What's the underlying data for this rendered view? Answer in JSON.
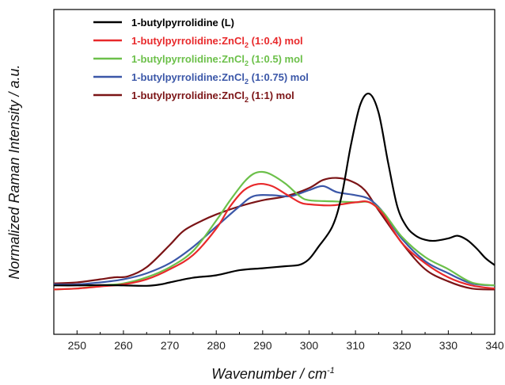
{
  "chart_data": {
    "type": "line",
    "xlabel": "Wavenumber / cm",
    "xlabel_sup": "-1",
    "ylabel": "Normalized Raman Intensity / a.u.",
    "xlim": [
      245,
      340
    ],
    "ylim": [
      0,
      1
    ],
    "x_ticks": [
      250,
      260,
      270,
      280,
      290,
      300,
      310,
      320,
      330,
      340
    ],
    "y_ticks_shown": false,
    "legend_position": "top-left",
    "series": [
      {
        "legend_parts": [
          "1-butylpyrrolidine (L)"
        ],
        "color": "#000000",
        "x": [
          245,
          250,
          255,
          260,
          265,
          268,
          270,
          275,
          280,
          285,
          290,
          295,
          298,
          300,
          302,
          305,
          307,
          309,
          311,
          313,
          315,
          317,
          319,
          321,
          323,
          325,
          327,
          330,
          332,
          334,
          336,
          338,
          340
        ],
        "y": [
          0.03,
          0.03,
          0.032,
          0.03,
          0.028,
          0.035,
          0.045,
          0.068,
          0.08,
          0.105,
          0.115,
          0.125,
          0.132,
          0.16,
          0.22,
          0.32,
          0.47,
          0.72,
          0.92,
          0.975,
          0.88,
          0.64,
          0.42,
          0.32,
          0.275,
          0.255,
          0.25,
          0.262,
          0.275,
          0.255,
          0.215,
          0.165,
          0.13
        ]
      },
      {
        "legend_parts": [
          "1-butylpyrrolidine:ZnCl",
          "2",
          " (1:0.4) mol"
        ],
        "color": "#e8292b",
        "x": [
          245,
          250,
          255,
          260,
          265,
          270,
          275,
          280,
          283,
          286,
          289,
          292,
          295,
          298,
          300,
          305,
          310,
          313,
          316,
          320,
          325,
          330,
          335,
          340
        ],
        "y": [
          0.01,
          0.015,
          0.025,
          0.035,
          0.06,
          0.11,
          0.18,
          0.31,
          0.42,
          0.5,
          0.53,
          0.52,
          0.48,
          0.44,
          0.43,
          0.425,
          0.44,
          0.44,
          0.38,
          0.24,
          0.14,
          0.07,
          0.03,
          0.015
        ]
      },
      {
        "legend_parts": [
          "1-butylpyrrolidine:ZnCl",
          "2",
          " (1:0.5) mol"
        ],
        "color": "#6cc04a",
        "x": [
          245,
          250,
          255,
          260,
          265,
          270,
          275,
          280,
          283,
          286,
          288,
          290,
          292,
          295,
          298,
          300,
          305,
          310,
          313,
          316,
          320,
          325,
          330,
          335,
          340
        ],
        "y": [
          0.01,
          0.015,
          0.03,
          0.04,
          0.07,
          0.12,
          0.2,
          0.35,
          0.45,
          0.54,
          0.58,
          0.59,
          0.575,
          0.53,
          0.47,
          0.45,
          0.445,
          0.44,
          0.44,
          0.39,
          0.27,
          0.17,
          0.11,
          0.045,
          0.03
        ]
      },
      {
        "legend_parts": [
          "1-butylpyrrolidine:ZnCl",
          "2",
          " (1:0.75) mol"
        ],
        "color": "#3b57a8",
        "x": [
          245,
          250,
          255,
          260,
          265,
          270,
          275,
          280,
          285,
          288,
          292,
          296,
          300,
          303,
          306,
          310,
          313,
          316,
          320,
          325,
          330,
          335,
          340
        ],
        "y": [
          0.035,
          0.035,
          0.045,
          0.06,
          0.09,
          0.14,
          0.22,
          0.32,
          0.42,
          0.47,
          0.475,
          0.47,
          0.5,
          0.52,
          0.49,
          0.475,
          0.455,
          0.39,
          0.26,
          0.15,
          0.09,
          0.04,
          0.03
        ]
      },
      {
        "legend_parts": [
          "1-butylpyrrolidine:ZnCl",
          "2",
          " (1:1) mol"
        ],
        "color": "#7b1416",
        "x": [
          245,
          250,
          255,
          258,
          261,
          265,
          270,
          273,
          277,
          280,
          285,
          290,
          295,
          300,
          303,
          306,
          309,
          312,
          315,
          320,
          325,
          330,
          335,
          340
        ],
        "y": [
          0.04,
          0.045,
          0.06,
          0.07,
          0.075,
          0.12,
          0.23,
          0.3,
          0.35,
          0.38,
          0.42,
          0.45,
          0.47,
          0.51,
          0.55,
          0.56,
          0.545,
          0.5,
          0.4,
          0.24,
          0.11,
          0.05,
          0.015,
          0.01
        ]
      }
    ]
  }
}
